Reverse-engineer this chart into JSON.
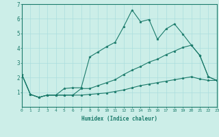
{
  "xlabel": "Humidex (Indice chaleur)",
  "xlim": [
    0,
    23
  ],
  "ylim": [
    0,
    7
  ],
  "xticks": [
    0,
    1,
    2,
    3,
    4,
    5,
    6,
    7,
    8,
    9,
    10,
    11,
    12,
    13,
    14,
    15,
    16,
    17,
    18,
    19,
    20,
    21,
    22,
    23
  ],
  "yticks": [
    1,
    2,
    3,
    4,
    5,
    6,
    7
  ],
  "bg_color": "#cceee8",
  "line_color": "#1a7a6a",
  "grid_color": "#aadddd",
  "series": [
    [
      2.2,
      0.85,
      0.65,
      0.8,
      0.8,
      1.25,
      1.3,
      1.3,
      3.4,
      3.75,
      4.1,
      4.4,
      5.45,
      6.6,
      5.8,
      5.95,
      4.6,
      5.3,
      5.65,
      4.95,
      4.2,
      3.5,
      2.05,
      1.8
    ],
    [
      2.2,
      0.85,
      0.65,
      0.8,
      0.8,
      0.8,
      0.8,
      1.25,
      1.25,
      1.45,
      1.65,
      1.85,
      2.2,
      2.5,
      2.75,
      3.05,
      3.25,
      3.55,
      3.8,
      4.05,
      4.2,
      3.5,
      2.05,
      1.8
    ],
    [
      2.2,
      0.85,
      0.65,
      0.8,
      0.8,
      0.8,
      0.8,
      0.8,
      0.85,
      0.9,
      0.95,
      1.05,
      1.15,
      1.3,
      1.45,
      1.55,
      1.65,
      1.75,
      1.85,
      1.95,
      2.05,
      1.9,
      1.8,
      1.8
    ]
  ]
}
